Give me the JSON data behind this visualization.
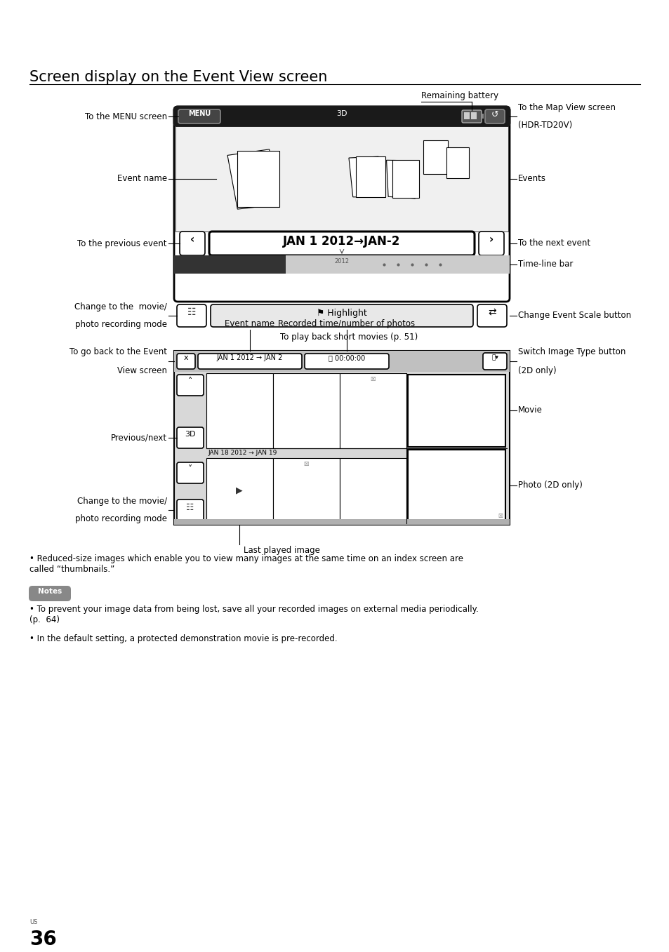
{
  "title": "Screen display on the Event View screen",
  "bg_color": "#ffffff",
  "text_color": "#000000",
  "page_number": "36",
  "page_label": "US",
  "bullet1": "Reduced-size images which enable you to view many images at the same time on an index screen are\ncalled “thumbnails.”",
  "notes_label": "Notes",
  "note1": "To prevent your image data from being lost, save all your recorded images on external media periodically.\n(p.  64)",
  "note2": "In the default setting, a protected demonstration movie is pre-recorded."
}
